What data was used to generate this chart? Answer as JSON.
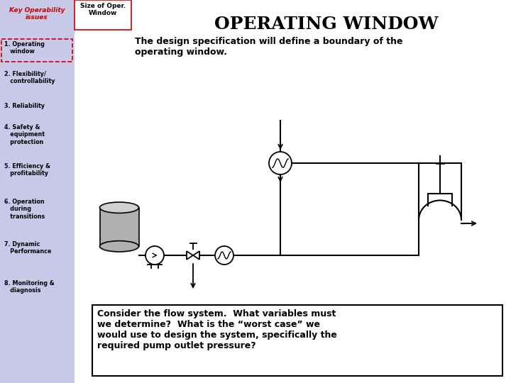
{
  "bg_color": "#ffffff",
  "left_panel_color": "#c8c8e8",
  "title_text": "OPERATING WINDOW",
  "title_fontsize": 18,
  "header_left_text": "Key Operability\nissues",
  "header_left_color": "#cc0000",
  "header_tab_text": "Size of Oper.\nWindow",
  "header_tab_color": "#ffffff",
  "header_tab_border": "#cc0000",
  "sidebar_items": [
    "1. Operating\n   window",
    "2. Flexibility/\n   controllability",
    "3. Reliability",
    "4. Safety &\n   equipment\n   protection",
    "5. Efficiency &\n   profitability",
    "6. Operation\n   during\n   transitions",
    "7. Dynamic\n   Performance",
    "8. Monitoring &\n   diagnosis"
  ],
  "design_spec_text": "The design specification will define a boundary of the\noperating window.",
  "bottom_box_text": "Consider the flow system.  What variables must\nwe determine?  What is the “worst case” we\nwould use to design the system, specifically the\nrequired pump outlet pressure?",
  "bottom_box_border": "#000000",
  "text_color": "#000000",
  "sidebar_text_color": "#000000",
  "item1_border_color": "#cc0000"
}
